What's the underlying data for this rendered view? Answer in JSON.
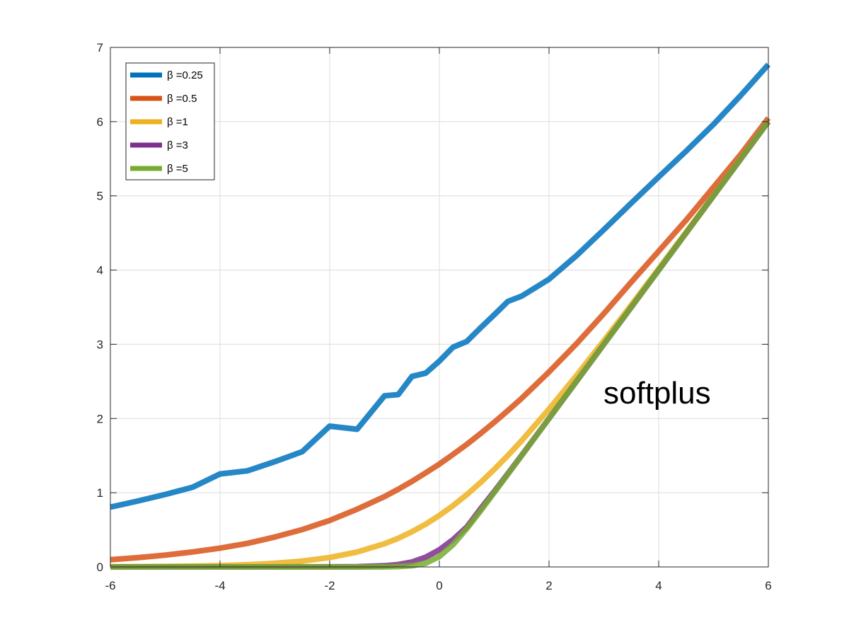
{
  "chart_data": {
    "type": "line",
    "title": "",
    "xlabel": "",
    "ylabel": "",
    "xlim": [
      -6,
      6
    ],
    "ylim": [
      0,
      7
    ],
    "xticks": [
      -6,
      -4,
      -2,
      0,
      2,
      4,
      6
    ],
    "yticks": [
      0,
      1,
      2,
      3,
      4,
      5,
      6,
      7
    ],
    "xtick_labels": [
      "-6",
      "-4",
      "-2",
      "0",
      "2",
      "4",
      "6"
    ],
    "ytick_labels": [
      "0",
      "1",
      "2",
      "3",
      "4",
      "5",
      "6",
      "7"
    ],
    "grid": true,
    "legend_position": "top-left",
    "annotation": "softplus",
    "x": [
      -6,
      -5.5,
      -5,
      -4.5,
      -4,
      -3.5,
      -3,
      -2.5,
      -2,
      -1.5,
      -1,
      -0.75,
      -0.5,
      -0.25,
      0,
      0.25,
      0.5,
      0.75,
      1,
      1.25,
      1.5,
      2,
      2.5,
      3,
      3.5,
      4,
      4.5,
      5,
      5.5,
      6
    ],
    "series": [
      {
        "name": "β =0.25",
        "color": "#0072BD",
        "values": [
          0.806,
          0.888,
          0.977,
          1.074,
          1.253,
          1.295,
          1.419,
          1.554,
          1.897,
          1.855,
          2.306,
          2.322,
          2.567,
          2.611,
          2.773,
          2.961,
          3.038,
          3.221,
          3.397,
          3.578,
          3.649,
          3.877,
          4.194,
          4.544,
          4.903,
          5.255,
          5.603,
          5.963,
          6.356,
          6.77
        ]
      },
      {
        "name": "β =0.5",
        "color": "#D95319",
        "values": [
          0.097,
          0.125,
          0.159,
          0.202,
          0.254,
          0.318,
          0.403,
          0.504,
          0.627,
          0.778,
          0.948,
          1.047,
          1.153,
          1.267,
          1.386,
          1.516,
          1.652,
          1.797,
          1.948,
          2.107,
          2.272,
          2.627,
          3.007,
          3.413,
          3.839,
          4.254,
          4.673,
          5.117,
          5.563,
          6.048
        ]
      },
      {
        "name": "β =1",
        "color": "#EDB120",
        "values": [
          0.002,
          0.004,
          0.007,
          0.011,
          0.018,
          0.03,
          0.049,
          0.079,
          0.127,
          0.201,
          0.313,
          0.386,
          0.474,
          0.576,
          0.693,
          0.826,
          0.974,
          1.136,
          1.313,
          1.502,
          1.701,
          2.127,
          2.579,
          3.049,
          3.53,
          4.018,
          4.511,
          5.007,
          5.504,
          6.002
        ]
      },
      {
        "name": "β =3",
        "color": "#7E2F8E",
        "values": [
          0,
          0,
          0,
          0,
          0,
          0,
          0,
          0.001,
          0.001,
          0.004,
          0.016,
          0.032,
          0.067,
          0.131,
          0.231,
          0.369,
          0.538,
          0.782,
          1.016,
          1.258,
          1.504,
          2.001,
          2.5,
          3.0,
          3.5,
          4.0,
          4.5,
          5.0,
          5.5,
          6.0
        ]
      },
      {
        "name": "β =5",
        "color": "#77AC30",
        "values": [
          0,
          0,
          0,
          0,
          0,
          0,
          0,
          0,
          0,
          0,
          0.001,
          0.005,
          0.016,
          0.05,
          0.139,
          0.3,
          0.516,
          0.752,
          1.001,
          1.25,
          1.5,
          2.0,
          2.5,
          3.0,
          3.5,
          4.0,
          4.5,
          5.0,
          5.5,
          6.0
        ]
      }
    ]
  }
}
